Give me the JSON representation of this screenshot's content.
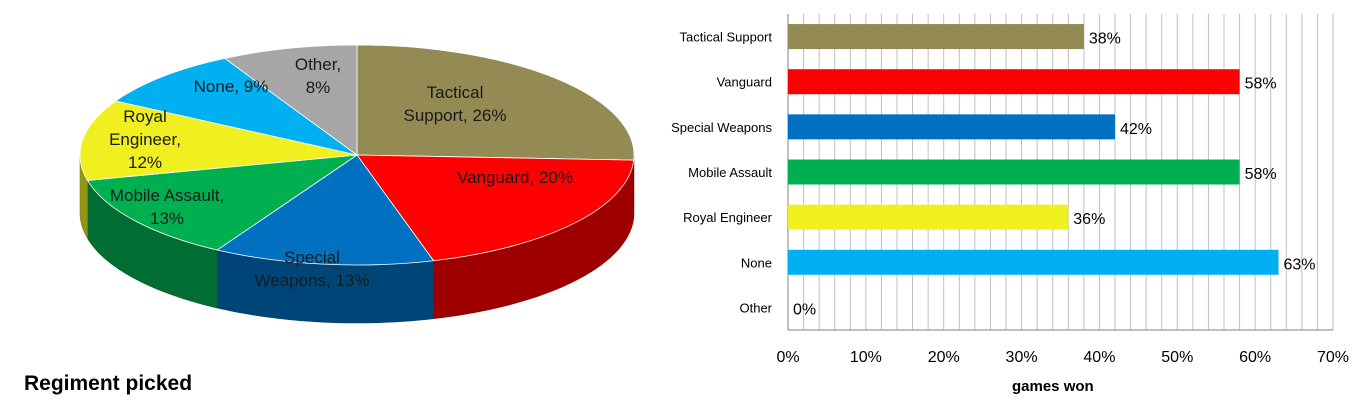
{
  "chart_data": [
    {
      "type": "pie",
      "title": "Regiment picked",
      "slices": [
        {
          "label": "Tactical Support",
          "value": 26,
          "display": "Tactical Support, 26%",
          "color": "#948A54"
        },
        {
          "label": "Vanguard",
          "value": 20,
          "display": "Vanguard, 20%",
          "color": "#FF0000"
        },
        {
          "label": "Special Weapons",
          "value": 13,
          "display": "Special Weapons, 13%",
          "color": "#0070C0"
        },
        {
          "label": "Mobile Assault",
          "value": 13,
          "display": "Mobile Assault, 13%",
          "color": "#00B050"
        },
        {
          "label": "Royal Engineer",
          "value": 12,
          "display": "Royal Engineer, 12%",
          "color": "#F0F020"
        },
        {
          "label": "None",
          "value": 9,
          "display": "None, 9%",
          "color": "#00B0F0"
        },
        {
          "label": "Other",
          "value": 8,
          "display": "Other, 8%",
          "color": "#A6A6A6"
        }
      ]
    },
    {
      "type": "bar",
      "orientation": "horizontal",
      "xlabel": "games won",
      "xlim": [
        0,
        70
      ],
      "ticks": [
        "0%",
        "10%",
        "20%",
        "30%",
        "40%",
        "50%",
        "60%",
        "70%"
      ],
      "grid": true,
      "categories": [
        "Tactical Support",
        "Vanguard",
        "Special Weapons",
        "Mobile Assault",
        "Royal Engineer",
        "None",
        "Other"
      ],
      "values": [
        38,
        58,
        42,
        58,
        36,
        63,
        0
      ],
      "value_labels": [
        "38%",
        "58%",
        "42%",
        "58%",
        "36%",
        "63%",
        "0%"
      ],
      "colors": [
        "#948A54",
        "#FF0000",
        "#0070C0",
        "#00B050",
        "#F0F020",
        "#00B0F0",
        "#A6A6A6"
      ]
    }
  ]
}
